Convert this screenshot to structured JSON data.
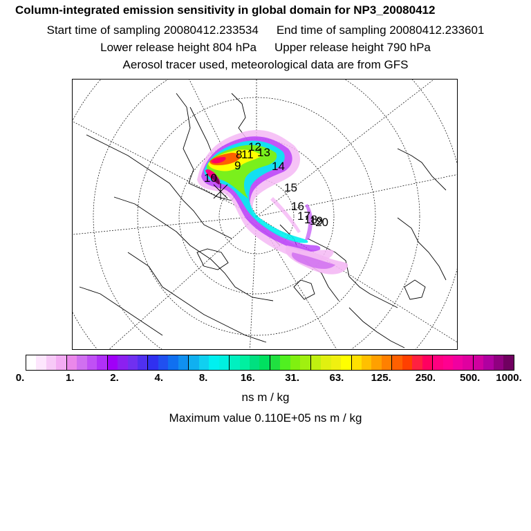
{
  "header": {
    "title": "Column-integrated emission sensitivity in global domain for NP3_20080412",
    "start_label": "Start time of sampling 20080412.233534",
    "end_label": "End time of sampling 20080412.233601",
    "lower_label": "Lower release height  804 hPa",
    "upper_label": "Upper release height  790 hPa",
    "tracer_note": "Aerosol tracer used, meteorological data are from GFS"
  },
  "map": {
    "projection": "polar stereographic (north)",
    "trajectory_labels": [
      "8",
      "9",
      "10",
      "11",
      "12",
      "13",
      "14",
      "15",
      "16",
      "17",
      "18",
      "19",
      "20"
    ]
  },
  "colorbar": {
    "tick_labels": [
      "0.",
      "1.",
      "2.",
      "4.",
      "8.",
      "16.",
      "31.",
      "63.",
      "125.",
      "250.",
      "500.",
      "1000."
    ],
    "colors": [
      "#ffffff",
      "#fde6fd",
      "#f7c9f7",
      "#f3acf3",
      "#ea88ea",
      "#d070f0",
      "#c050f5",
      "#b030f8",
      "#a000f8",
      "#8c20f0",
      "#7030f0",
      "#5030f0",
      "#3030f0",
      "#2050f0",
      "#1070f0",
      "#1090f0",
      "#10b0f0",
      "#10d0f0",
      "#00f0f0",
      "#00f0e0",
      "#00f0c0",
      "#00f0a0",
      "#00e080",
      "#00e060",
      "#20e040",
      "#50f020",
      "#80f010",
      "#a0f010",
      "#c0f010",
      "#e0f010",
      "#f0f010",
      "#ffff00",
      "#ffe000",
      "#ffc000",
      "#ffa000",
      "#ff8000",
      "#ff6000",
      "#ff4000",
      "#ff2040",
      "#ff0060",
      "#ff0080",
      "#ff0090",
      "#f000a0",
      "#e000a0",
      "#d000a0",
      "#b000a0",
      "#900080",
      "#700060"
    ],
    "units": "ns m / kg"
  },
  "footer": {
    "max_value": "Maximum value  0.110E+05 ns m / kg"
  }
}
